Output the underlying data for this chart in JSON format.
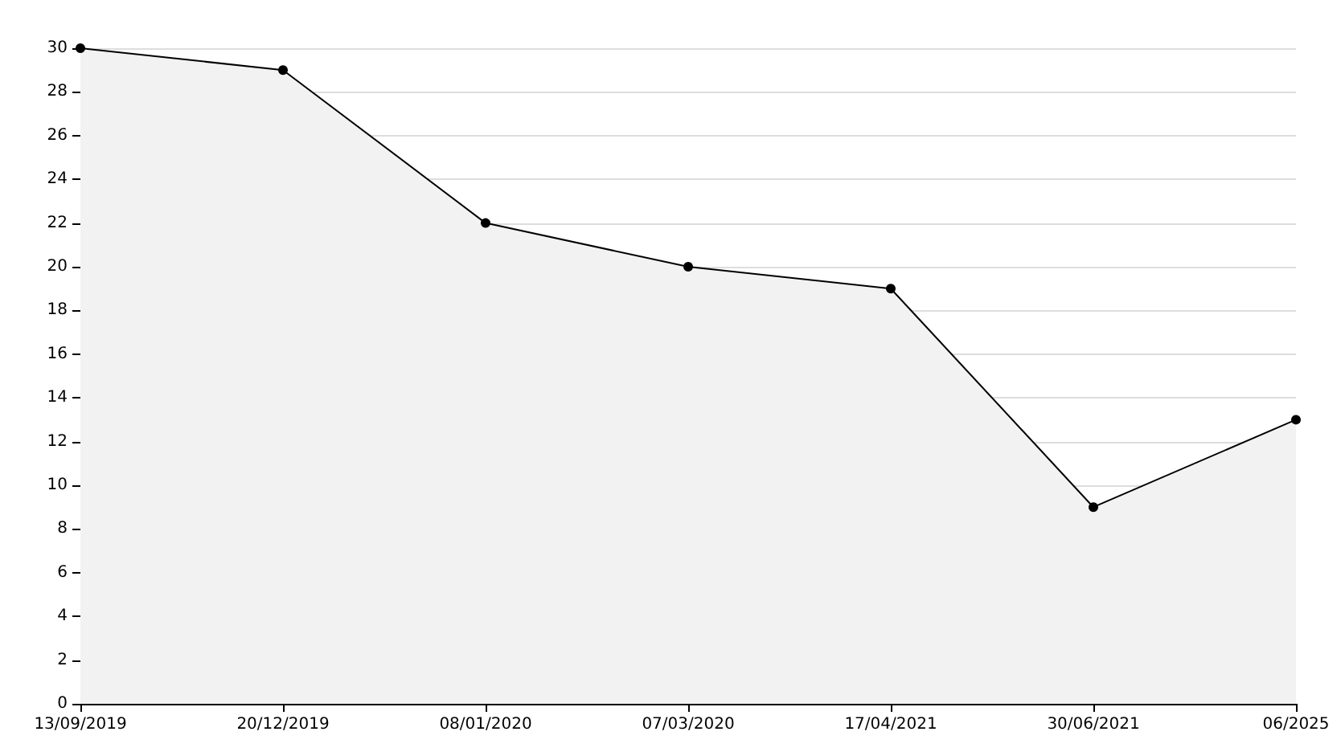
{
  "chart_data": {
    "type": "area",
    "categories": [
      "13/09/2019",
      "20/12/2019",
      "08/01/2020",
      "07/03/2020",
      "17/04/2021",
      "30/06/2021",
      "06/2025"
    ],
    "series": [
      {
        "color": "#000000",
        "values": [
          30,
          29,
          22,
          20,
          19,
          9,
          13
        ]
      }
    ],
    "ylim": [
      0,
      30
    ],
    "yticks": [
      0,
      2,
      4,
      6,
      8,
      10,
      12,
      14,
      16,
      18,
      20,
      22,
      24,
      26,
      28,
      30
    ],
    "grid": "y",
    "marker": "circle",
    "line_style": "solid"
  }
}
